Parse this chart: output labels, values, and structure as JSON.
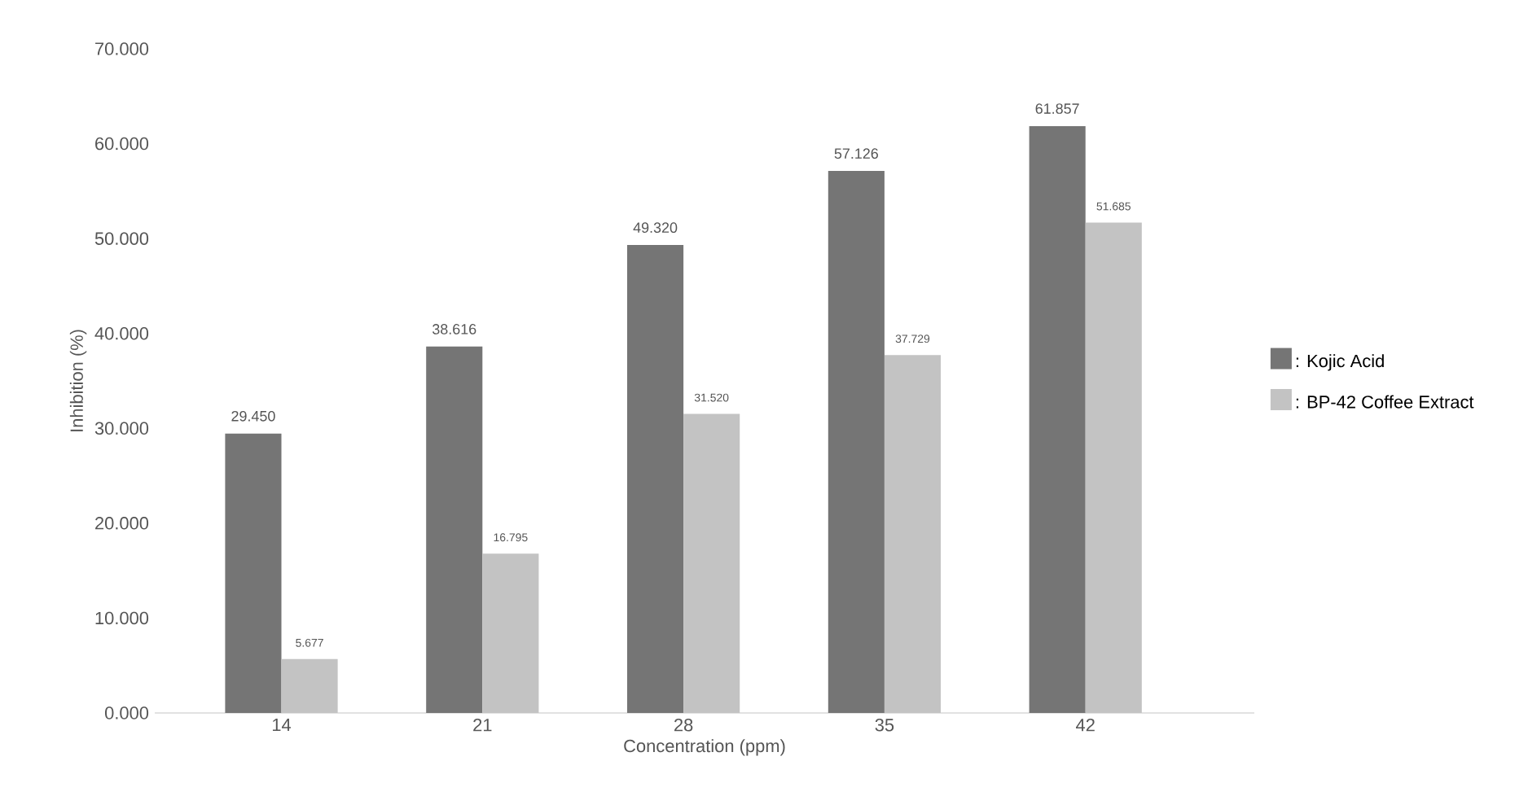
{
  "chart_data": {
    "type": "bar",
    "xlabel": "Concentration (ppm)",
    "ylabel": "Inhibition (%)",
    "categories": [
      "14",
      "21",
      "28",
      "35",
      "42"
    ],
    "series": [
      {
        "name": ": Kojic Acid",
        "color": "#757575",
        "values": [
          29.45,
          38.616,
          49.32,
          57.126,
          61.857
        ],
        "value_labels": [
          "29.450",
          "38.616",
          "49.320",
          "57.126",
          "61.857"
        ]
      },
      {
        "name": ": BP-42 Coffee Extract",
        "color": "#c3c3c3",
        "values": [
          5.677,
          16.795,
          31.52,
          37.729,
          51.685
        ],
        "value_labels": [
          "5.677",
          "16.795",
          "31.520",
          "37.729",
          "51.685"
        ]
      }
    ],
    "ylim": [
      0,
      70
    ],
    "yticks": [
      {
        "value": 0,
        "label": "0.000"
      },
      {
        "value": 10,
        "label": "10.000"
      },
      {
        "value": 20,
        "label": "20.000"
      },
      {
        "value": 30,
        "label": "30.000"
      },
      {
        "value": 40,
        "label": "40.000"
      },
      {
        "value": 50,
        "label": "50.000"
      },
      {
        "value": 60,
        "label": "60.000"
      },
      {
        "value": 70,
        "label": "70.000"
      }
    ],
    "grid": false,
    "legend": "right"
  }
}
